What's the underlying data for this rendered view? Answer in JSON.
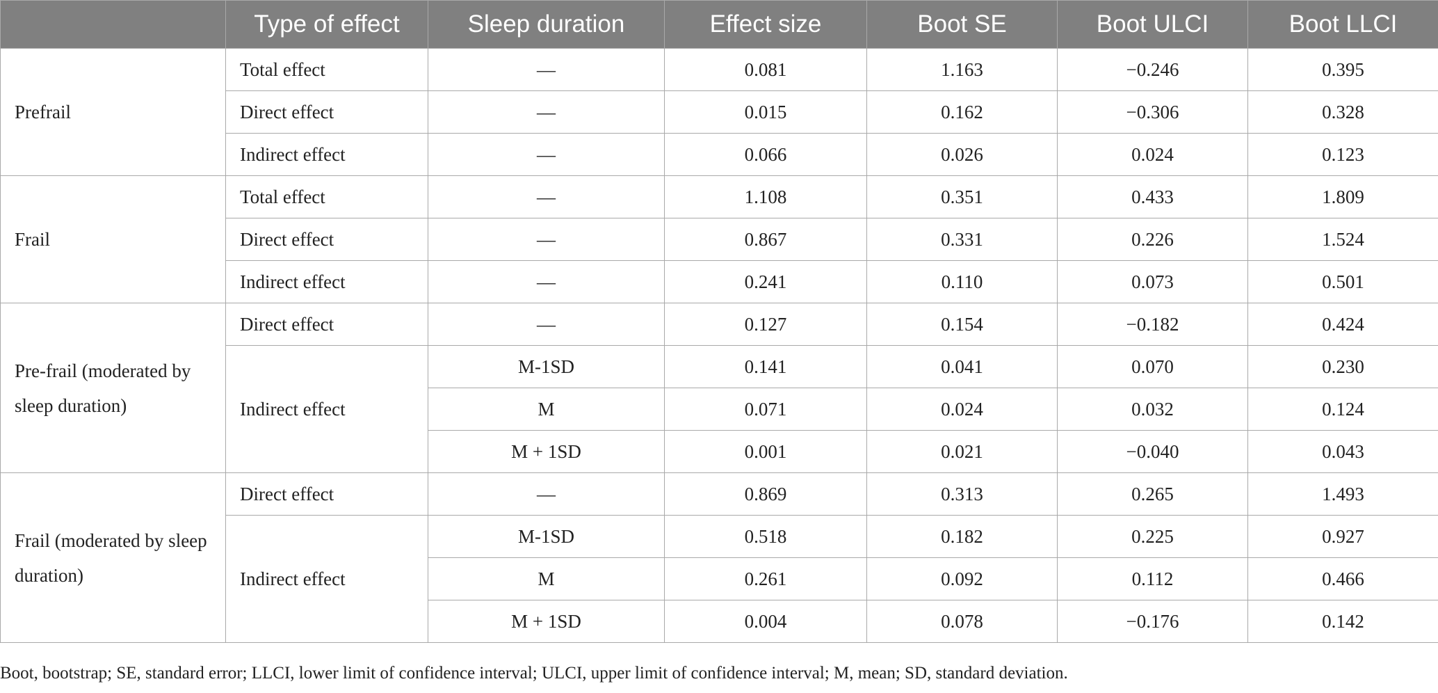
{
  "headers": [
    "",
    "Type of effect",
    "Sleep duration",
    "Effect size",
    "Boot SE",
    "Boot ULCI",
    "Boot LLCI"
  ],
  "groups": [
    {
      "label": "Prefrail",
      "rows": [
        {
          "effect": "Total effect",
          "sleep": "—",
          "effect_size": "0.081",
          "boot_se": "1.163",
          "ulci": "−0.246",
          "llci": "0.395"
        },
        {
          "effect": "Direct effect",
          "sleep": "—",
          "effect_size": "0.015",
          "boot_se": "0.162",
          "ulci": "−0.306",
          "llci": "0.328"
        },
        {
          "effect": "Indirect effect",
          "sleep": "—",
          "effect_size": "0.066",
          "boot_se": "0.026",
          "ulci": "0.024",
          "llci": "0.123"
        }
      ]
    },
    {
      "label": "Frail",
      "rows": [
        {
          "effect": "Total effect",
          "sleep": "—",
          "effect_size": "1.108",
          "boot_se": "0.351",
          "ulci": "0.433",
          "llci": "1.809"
        },
        {
          "effect": "Direct effect",
          "sleep": "—",
          "effect_size": "0.867",
          "boot_se": "0.331",
          "ulci": "0.226",
          "llci": "1.524"
        },
        {
          "effect": "Indirect effect",
          "sleep": "—",
          "effect_size": "0.241",
          "boot_se": "0.110",
          "ulci": "0.073",
          "llci": "0.501"
        }
      ]
    },
    {
      "label": "Pre-frail (moderated by sleep duration)",
      "rows": [
        {
          "effect": "Direct effect",
          "sleep": "—",
          "effect_size": "0.127",
          "boot_se": "0.154",
          "ulci": "−0.182",
          "llci": "0.424"
        },
        {
          "effect": "Indirect effect",
          "sleep": "M-1SD",
          "effect_size": "0.141",
          "boot_se": "0.041",
          "ulci": "0.070",
          "llci": "0.230"
        },
        {
          "effect": "",
          "sleep": "M",
          "effect_size": "0.071",
          "boot_se": "0.024",
          "ulci": "0.032",
          "llci": "0.124"
        },
        {
          "effect": "",
          "sleep": "M + 1SD",
          "effect_size": "0.001",
          "boot_se": "0.021",
          "ulci": "−0.040",
          "llci": "0.043"
        }
      ]
    },
    {
      "label": "Frail (moderated by sleep duration)",
      "rows": [
        {
          "effect": "Direct effect",
          "sleep": "—",
          "effect_size": "0.869",
          "boot_se": "0.313",
          "ulci": "0.265",
          "llci": "1.493"
        },
        {
          "effect": "Indirect effect",
          "sleep": "M-1SD",
          "effect_size": "0.518",
          "boot_se": "0.182",
          "ulci": "0.225",
          "llci": "0.927"
        },
        {
          "effect": "",
          "sleep": "M",
          "effect_size": "0.261",
          "boot_se": "0.092",
          "ulci": "0.112",
          "llci": "0.466"
        },
        {
          "effect": "",
          "sleep": "M + 1SD",
          "effect_size": "0.004",
          "boot_se": "0.078",
          "ulci": "−0.176",
          "llci": "0.142"
        }
      ]
    }
  ],
  "footnote": "Boot, bootstrap; SE, standard error; LLCI, lower limit of confidence interval; ULCI, upper limit of confidence interval; M, mean; SD, standard deviation."
}
